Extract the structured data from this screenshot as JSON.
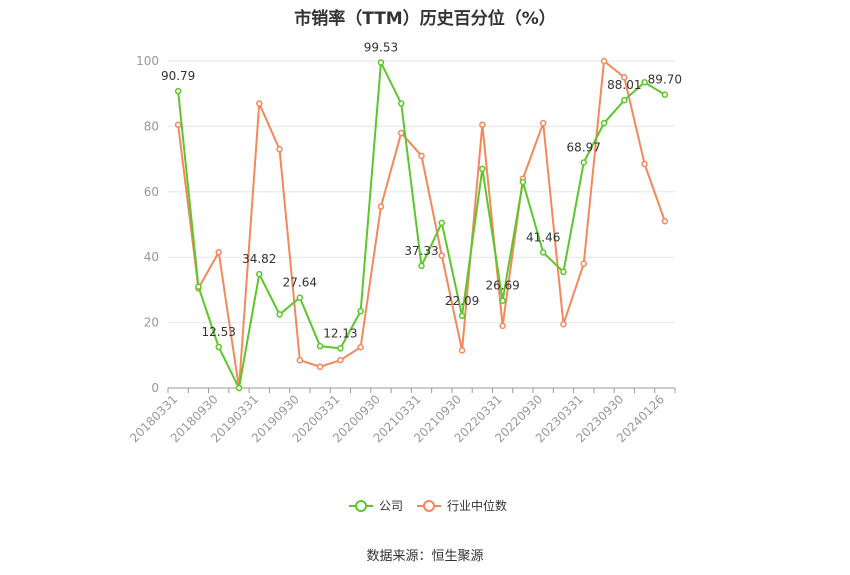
{
  "chart_data": {
    "type": "line",
    "title": "市销率（TTM）历史百分位（%）",
    "source": "数据来源：恒生聚源",
    "ylim": [
      0,
      100
    ],
    "yticks": [
      0,
      20,
      40,
      60,
      80,
      100
    ],
    "grid": true,
    "legend_position": "bottom",
    "x_tick_labels": [
      "20180331",
      "20180930",
      "20190331",
      "20190930",
      "20200331",
      "20200930",
      "20210331",
      "20210930",
      "20220331",
      "20220930",
      "20230331",
      "20230930",
      "20240126"
    ],
    "x": [
      "20180331",
      "20180630",
      "20180930",
      "20181231",
      "20190331",
      "20190630",
      "20190930",
      "20191231",
      "20200331",
      "20200630",
      "20200930",
      "20201231",
      "20210331",
      "20210630",
      "20210930",
      "20211231",
      "20220331",
      "20220630",
      "20220930",
      "20221231",
      "20230331",
      "20230630",
      "20230930",
      "20231231",
      "20240126"
    ],
    "series": [
      {
        "name": "公司",
        "color": "#5cc72a",
        "values": [
          90.79,
          31.0,
          12.53,
          0.0,
          34.82,
          22.5,
          27.64,
          12.8,
          12.13,
          23.5,
          99.53,
          87.0,
          37.33,
          50.5,
          22.09,
          67.0,
          26.69,
          63.0,
          41.46,
          35.5,
          68.97,
          81.0,
          88.01,
          93.5,
          89.7
        ],
        "labels": [
          "90.79",
          "",
          "12.53",
          "",
          "34.82",
          "",
          "27.64",
          "",
          "12.13",
          "",
          "99.53",
          "",
          "37.33",
          "",
          "22.09",
          "",
          "26.69",
          "",
          "41.46",
          "",
          "68.97",
          "",
          "88.01",
          "",
          "89.70"
        ]
      },
      {
        "name": "行业中位数",
        "color": "#f4885b",
        "values": [
          80.5,
          30.5,
          41.5,
          0.0,
          87.0,
          73.0,
          8.5,
          6.5,
          8.5,
          12.5,
          55.5,
          78.0,
          71.0,
          40.5,
          11.5,
          80.5,
          19.0,
          64.0,
          81.0,
          19.5,
          38.0,
          100.0,
          95.0,
          68.5,
          51.0
        ]
      }
    ]
  }
}
